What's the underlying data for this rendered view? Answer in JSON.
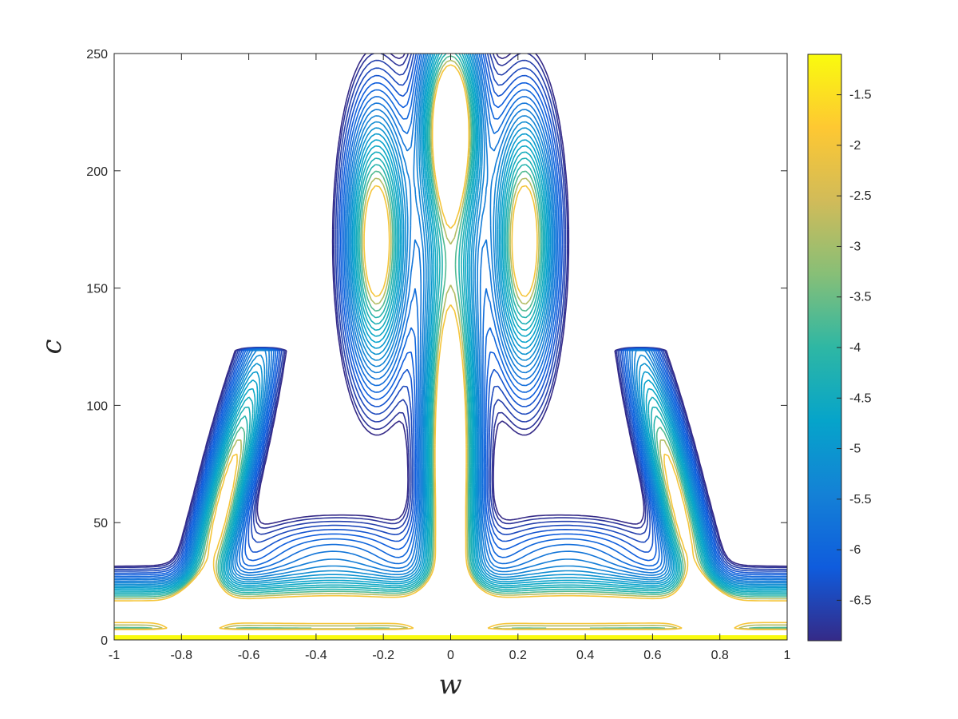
{
  "chart_data": {
    "type": "contour",
    "title": "",
    "xlabel": "w",
    "ylabel": "c",
    "xlim": [
      -1,
      1
    ],
    "ylim": [
      0,
      250
    ],
    "x_ticks": [
      "-1",
      "-0.8",
      "-0.6",
      "-0.4",
      "-0.2",
      "0",
      "0.2",
      "0.4",
      "0.6",
      "0.8",
      "1"
    ],
    "y_ticks": [
      "0",
      "50",
      "100",
      "150",
      "200",
      "250"
    ],
    "grid": false,
    "colormap": "parula",
    "colorbar": {
      "range": [
        -6.9,
        -1.1
      ],
      "ticks": [
        "-1.5",
        "-2",
        "-2.5",
        "-3",
        "-3.5",
        "-4",
        "-4.5",
        "-5",
        "-5.5",
        "-6",
        "-6.5"
      ],
      "colors": [
        "#352a87",
        "#0f5cdd",
        "#1481d6",
        "#06a4ca",
        "#2eb7a4",
        "#87bf77",
        "#d1bb59",
        "#fec832",
        "#f9fb0e"
      ]
    },
    "features": [
      {
        "name": "central stem",
        "w": [
          -0.09,
          0.09
        ],
        "c": [
          5,
          150
        ],
        "min_level": -6.9
      },
      {
        "name": "top lobe",
        "w": [
          -0.09,
          0.09
        ],
        "c": [
          190,
          250
        ],
        "min_level": -6.9
      },
      {
        "name": "left arm",
        "w": [
          -0.33,
          -0.12
        ],
        "c": [
          130,
          215
        ],
        "min_level": -6.9
      },
      {
        "name": "right arm",
        "w": [
          0.12,
          0.33
        ],
        "c": [
          130,
          215
        ],
        "min_level": -6.9
      },
      {
        "name": "left horn",
        "w": [
          -0.8,
          -0.53
        ],
        "c": [
          15,
          122
        ],
        "min_level": -6.9
      },
      {
        "name": "right horn",
        "w": [
          0.53,
          0.8
        ],
        "c": [
          15,
          122
        ],
        "min_level": -6.9
      },
      {
        "name": "base band",
        "w": [
          -1,
          1
        ],
        "c": [
          0,
          25
        ],
        "min_level": -6.9
      },
      {
        "name": "bottom edge",
        "w": [
          -1,
          1
        ],
        "c": [
          0,
          2
        ],
        "min_level": -1.1
      }
    ]
  }
}
